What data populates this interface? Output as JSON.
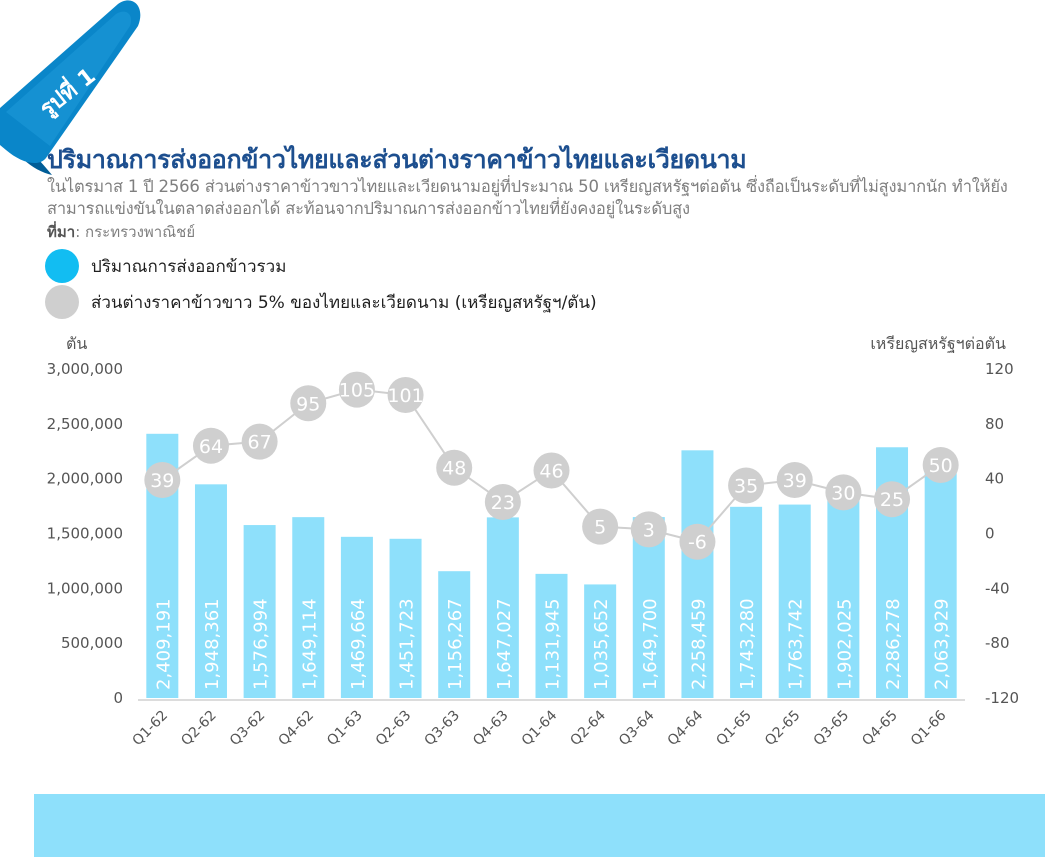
{
  "badge": {
    "text": "รูปที่ 1"
  },
  "header": {
    "title": "ปริมาณการส่งออกข้าวไทยและส่วนต่างราคาข้าวไทยและเวียดนาม",
    "subtitle": "ในไตรมาส 1 ปี 2566 ส่วนต่างราคาข้าวขาวไทยและเวียดนามอยู่ที่ประมาณ 50 เหรียญสหรัฐฯต่อตัน ซึ่งถือเป็นระดับที่ไม่สูงมากนัก ทำให้ยังสามารถแข่งขันในตลาดส่งออกได้ สะท้อนจากปริมาณการส่งออกข้าวไทยที่ยังคงอยู่ในระดับสูง",
    "source_label": "ที่มา",
    "source_text": ": กระทรวงพาณิชย์"
  },
  "colors": {
    "bar": "#8ee0fb",
    "line": "#cfcfcf",
    "badge": "#0a86c9",
    "title": "#1d4f8f",
    "legend_bar": "#12bdf2"
  },
  "chart_data": {
    "type": "bar",
    "categories": [
      "Q1-62",
      "Q2-62",
      "Q3-62",
      "Q4-62",
      "Q1-63",
      "Q2-63",
      "Q3-63",
      "Q4-63",
      "Q1-64",
      "Q2-64",
      "Q3-64",
      "Q4-64",
      "Q1-65",
      "Q2-65",
      "Q3-65",
      "Q4-65",
      "Q1-66"
    ],
    "series": [
      {
        "name": "ปริมาณการส่งออกข้าวรวม",
        "type": "bar",
        "axis": "left",
        "values": [
          2409191,
          1948361,
          1576994,
          1649114,
          1469664,
          1451723,
          1156267,
          1647027,
          1131945,
          1035652,
          1649700,
          2258459,
          1743280,
          1763742,
          1902025,
          2286278,
          2063929
        ],
        "labels": [
          "2,409,191",
          "1,948,361",
          "1,576,994",
          "1,649,114",
          "1,469,664",
          "1,451,723",
          "1,156,267",
          "1,647,027",
          "1,131,945",
          "1,035,652",
          "1,649,700",
          "2,258,459",
          "1,743,280",
          "1,763,742",
          "1,902,025",
          "2,286,278",
          "2,063,929"
        ]
      },
      {
        "name": "ส่วนต่างราคาข้าวขาว 5% ของไทยและเวียดนาม (เหรียญสหรัฐฯ/ตัน)",
        "type": "line",
        "axis": "right",
        "values": [
          39,
          64,
          67,
          95,
          105,
          101,
          48,
          23,
          46,
          5,
          3,
          -6,
          35,
          39,
          30,
          25,
          50
        ]
      }
    ],
    "ylabel": "ตัน",
    "y2label": "เหรียญสหรัฐฯต่อตัน",
    "ylim": [
      0,
      3000000
    ],
    "yticks": [
      "3,000,000",
      "2,500,000",
      "2,000,000",
      "1,500,000",
      "1,000,000",
      "500,000",
      "0"
    ],
    "y2lim": [
      -120,
      120
    ],
    "y2ticks": [
      "120",
      "80",
      "40",
      "0",
      "-40",
      "-80",
      "-120"
    ],
    "grid": false,
    "legend": "top-left"
  }
}
